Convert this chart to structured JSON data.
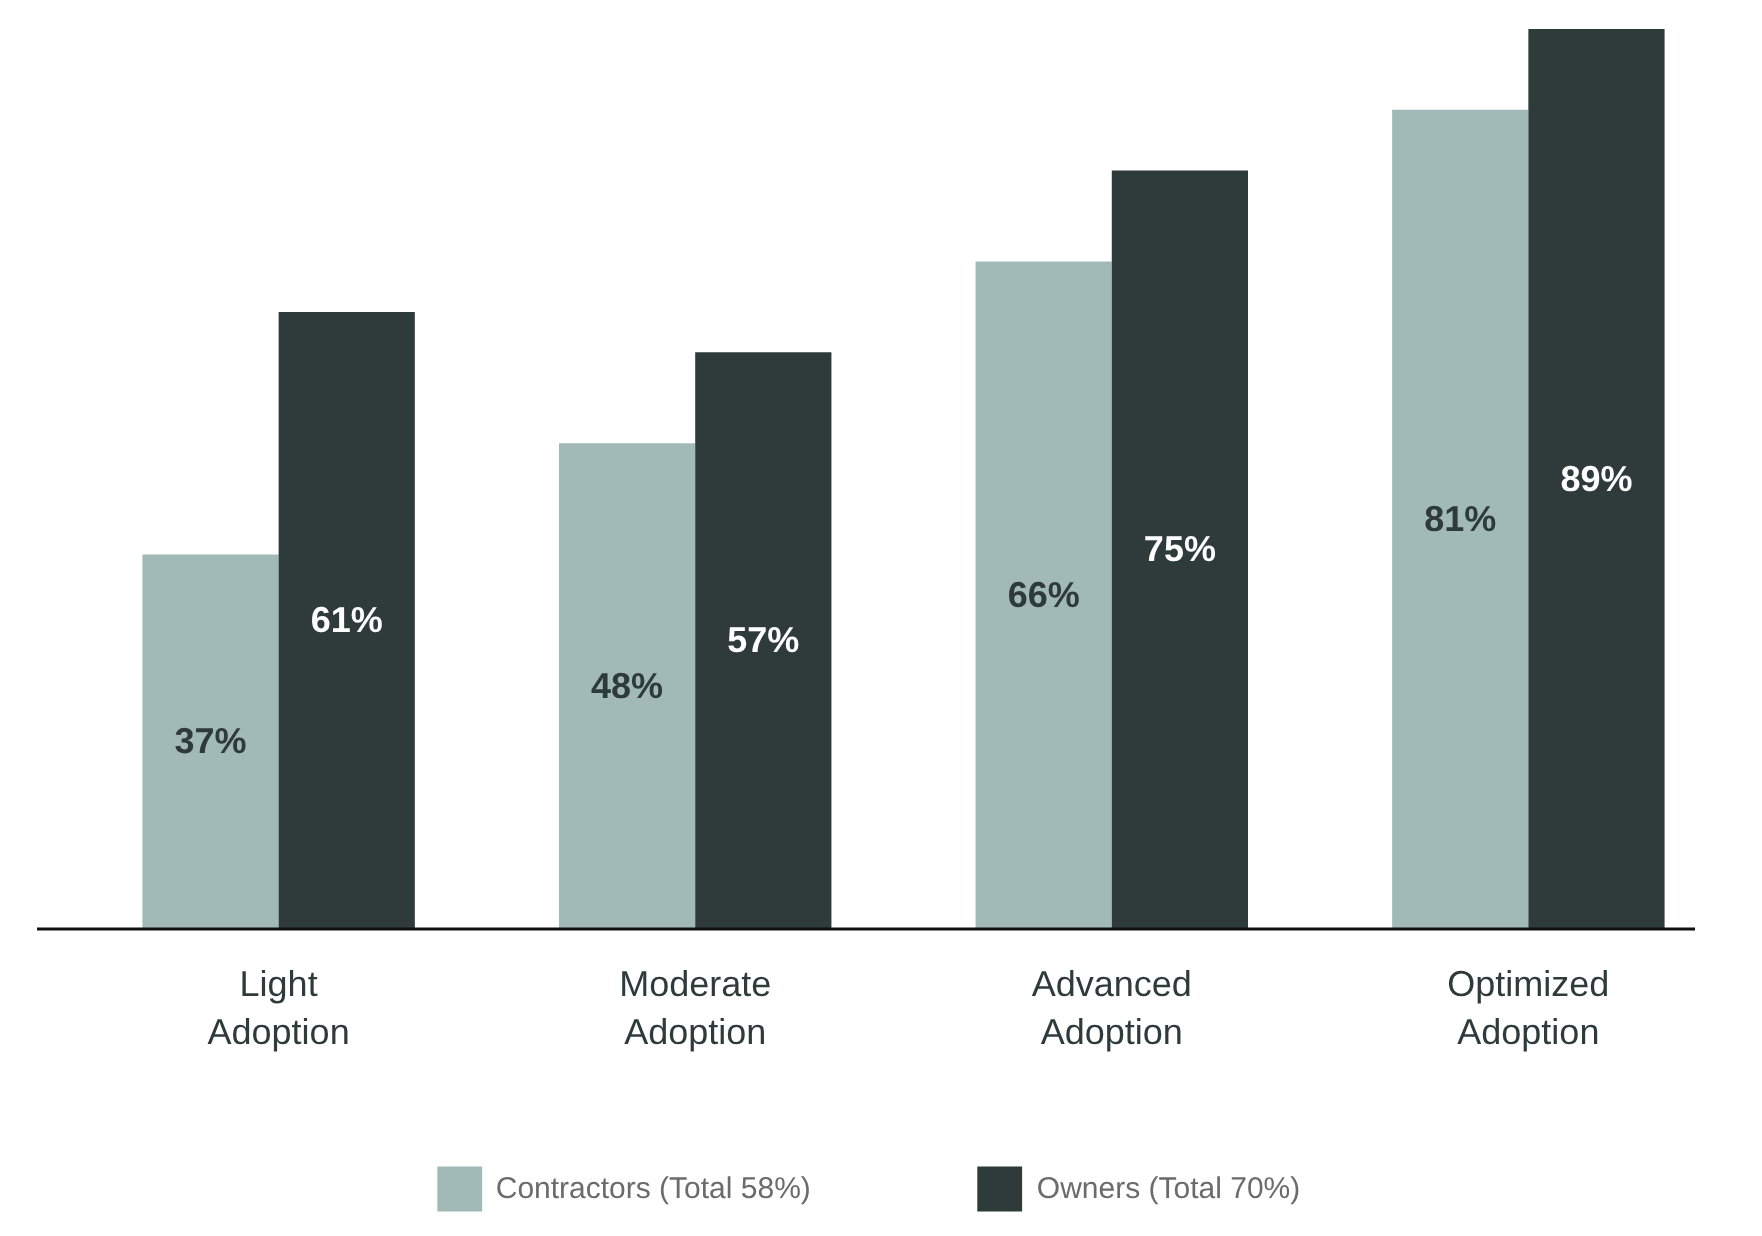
{
  "chart_data": {
    "type": "bar",
    "categories": [
      "Light\nAdoption",
      "Moderate\nAdoption",
      "Advanced\nAdoption",
      "Optimized\nAdoption"
    ],
    "series": [
      {
        "name": "Contractors (Total 58%)",
        "color": "#a2bab7",
        "values": [
          37,
          48,
          66,
          81
        ],
        "value_labels": [
          "37%",
          "48%",
          "66%",
          "81%"
        ]
      },
      {
        "name": "Owners (Total 70%)",
        "color": "#2e3b3a",
        "values": [
          61,
          57,
          75,
          89
        ],
        "value_labels": [
          "61%",
          "57%",
          "75%",
          "89%"
        ]
      }
    ],
    "legend": "bottom"
  }
}
